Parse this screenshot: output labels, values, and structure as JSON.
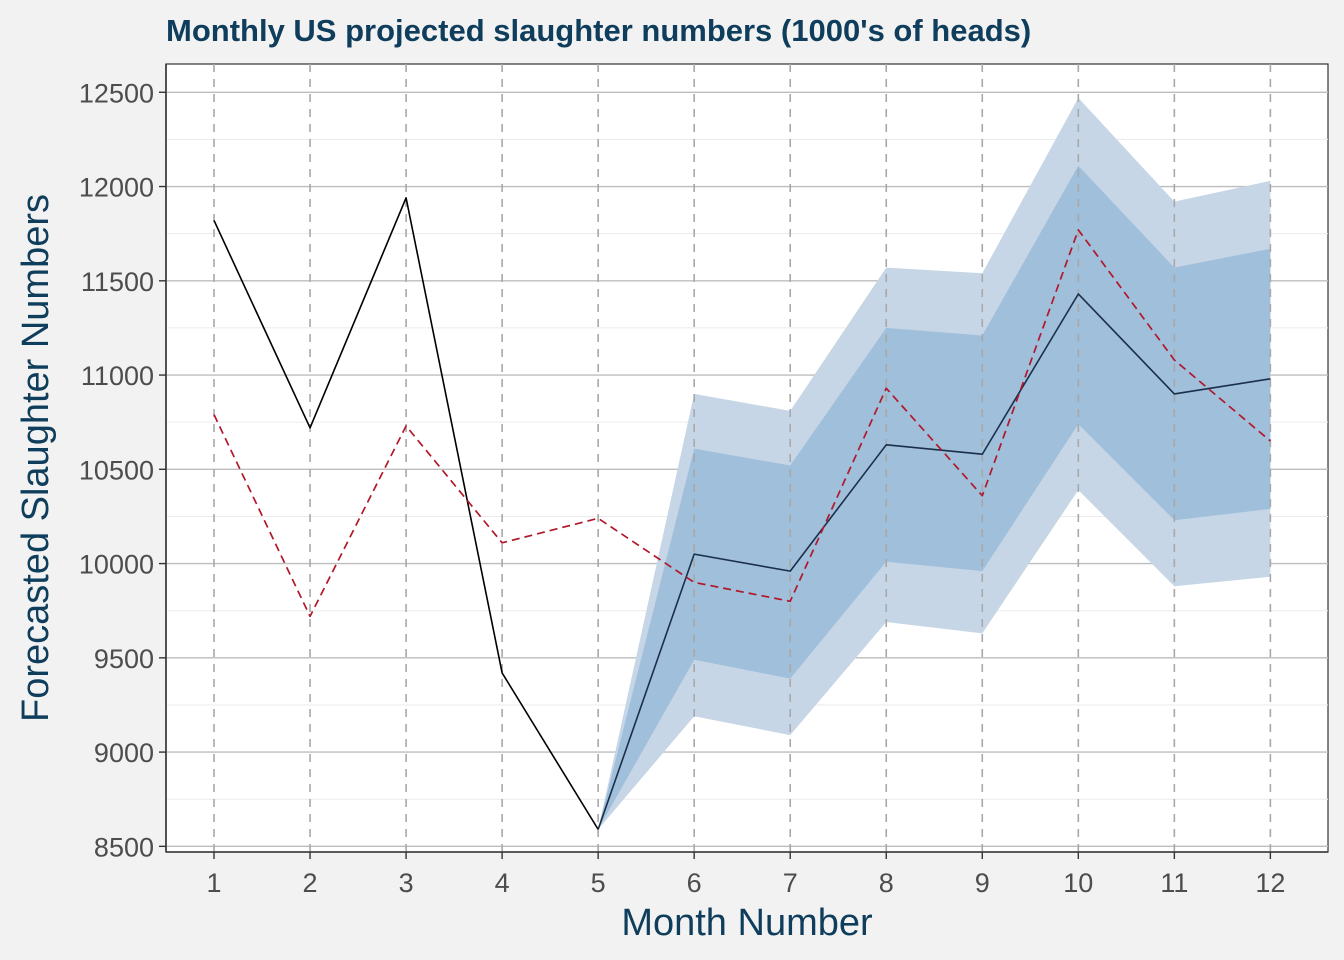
{
  "chart_data": {
    "type": "line",
    "title": "Monthly US projected slaughter numbers (1000's of heads)",
    "xlabel": "Month Number",
    "ylabel": "Forecasted Slaughter Numbers",
    "x": [
      1,
      2,
      3,
      4,
      5,
      6,
      7,
      8,
      9,
      10,
      11,
      12
    ],
    "xlim": [
      0.5,
      12.6
    ],
    "ylim": [
      8470,
      12650
    ],
    "yticks": [
      8500,
      9000,
      9500,
      10000,
      10500,
      11000,
      11500,
      12000,
      12500
    ],
    "grid": true,
    "legend": "none",
    "series": [
      {
        "style": "solid",
        "color": "#000000",
        "x": [
          1,
          2,
          3,
          4,
          5
        ],
        "values": [
          11820,
          10720,
          11940,
          9420,
          8590
        ]
      },
      {
        "style": "solid",
        "color": "#1b2f4a",
        "x": [
          5,
          6,
          7,
          8,
          9,
          10,
          11,
          12
        ],
        "values": [
          8590,
          10050,
          9960,
          10630,
          10580,
          11430,
          10900,
          10980
        ]
      },
      {
        "style": "dashed",
        "color": "#b2182b",
        "x": [
          1,
          2,
          3,
          4,
          5,
          6,
          7,
          8,
          9,
          10,
          11,
          12
        ],
        "values": [
          10790,
          9720,
          10730,
          10110,
          10240,
          9900,
          9800,
          10930,
          10360,
          11770,
          11080,
          10650
        ]
      }
    ],
    "bands": [
      {
        "level": "outer",
        "color": "#c6d6e7",
        "x": [
          5,
          6,
          7,
          8,
          9,
          10,
          11,
          12
        ],
        "lower": [
          8590,
          9190,
          9090,
          9690,
          9630,
          10390,
          9880,
          9930
        ],
        "upper": [
          8590,
          10900,
          10810,
          11570,
          11540,
          12470,
          11920,
          12030
        ]
      },
      {
        "level": "inner",
        "color": "#9fbfdb",
        "x": [
          5,
          6,
          7,
          8,
          9,
          10,
          11,
          12
        ],
        "lower": [
          8590,
          9490,
          9390,
          10010,
          9960,
          10740,
          10230,
          10290
        ],
        "upper": [
          8590,
          10610,
          10520,
          11250,
          11210,
          12110,
          11570,
          11670
        ]
      }
    ]
  }
}
